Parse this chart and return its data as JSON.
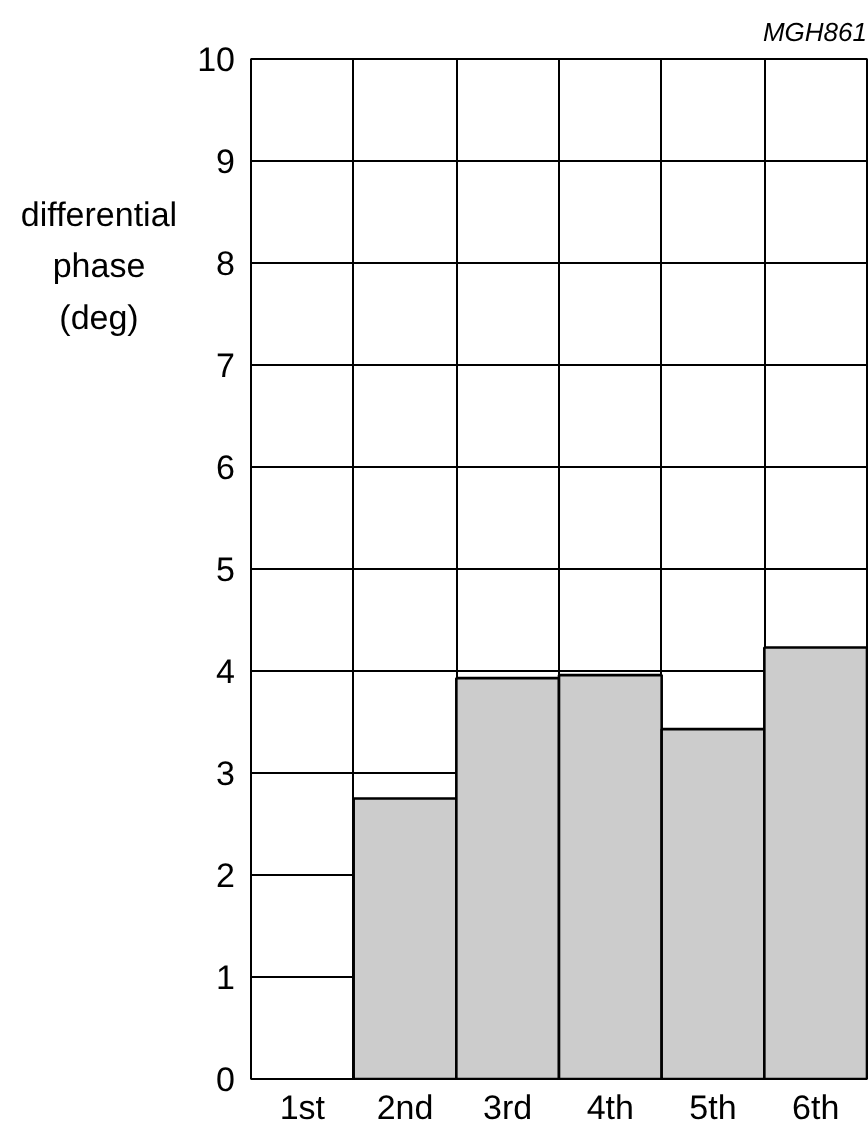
{
  "chart_data": {
    "type": "bar",
    "categories": [
      "1st",
      "2nd",
      "3rd",
      "4th",
      "5th",
      "6th"
    ],
    "values": [
      null,
      2.75,
      3.93,
      3.96,
      3.43,
      4.23
    ],
    "color": "#cccccc",
    "ylabel": "differential phase (deg)",
    "ylim": [
      0,
      10
    ],
    "yticks": [
      0,
      1,
      2,
      3,
      4,
      5,
      6,
      7,
      8,
      9,
      10
    ],
    "grid": true,
    "annotations": [
      "MGH861"
    ]
  }
}
